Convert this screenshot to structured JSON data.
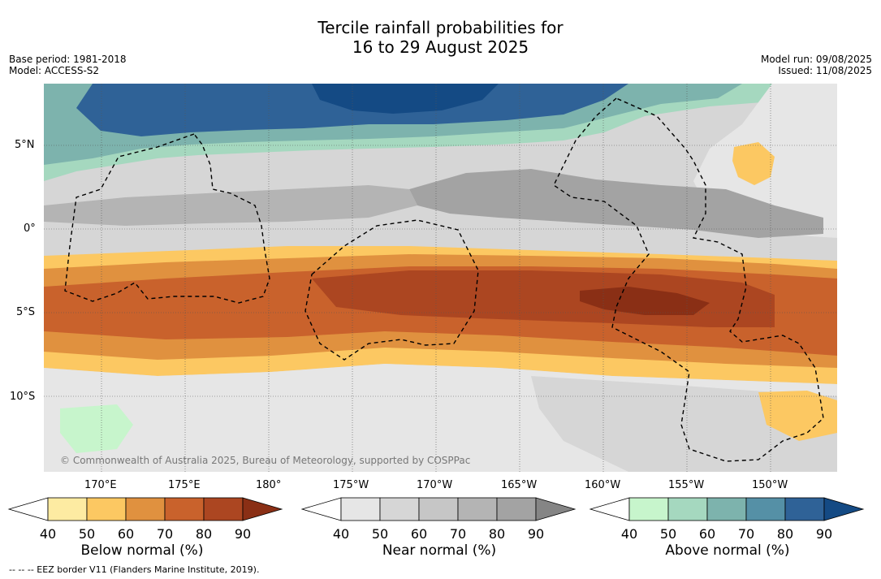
{
  "title_line1": "Tercile rainfall probabilities for",
  "title_line2": "16 to 29 August 2025",
  "meta_left": {
    "base_period": "Base period: 1981-2018",
    "model": "Model: ACCESS-S2"
  },
  "meta_right": {
    "model_run": "Model run: 09/08/2025",
    "issued": "Issued: 11/08/2025"
  },
  "map": {
    "lat_labels": [
      "5°N",
      "0°",
      "5°S",
      "10°S"
    ],
    "lon_labels": [
      "170°E",
      "175°E",
      "180°",
      "175°W",
      "170°W",
      "165°W",
      "160°W",
      "155°W",
      "150°W"
    ],
    "copyright": "© Commonwealth of Australia 2025, Bureau of Meteorology, supported by COSPPac"
  },
  "colorbars": [
    {
      "label": "Below normal (%)",
      "ticks": [
        "40",
        "50",
        "60",
        "70",
        "80",
        "90"
      ],
      "colors": [
        "#fdeba2",
        "#fcc862",
        "#e0913f",
        "#c9622c",
        "#ac4621",
        "#8a2f15"
      ]
    },
    {
      "label": "Near normal (%)",
      "ticks": [
        "40",
        "50",
        "60",
        "70",
        "80",
        "90"
      ],
      "colors": [
        "#e6e6e6",
        "#d6d6d6",
        "#c6c6c6",
        "#b4b4b4",
        "#a3a3a3",
        "#858585"
      ]
    },
    {
      "label": "Above normal (%)",
      "ticks": [
        "40",
        "50",
        "60",
        "70",
        "80",
        "90"
      ],
      "colors": [
        "#c7f5cc",
        "#a5d8bf",
        "#7db3ad",
        "#5590a6",
        "#2f6297",
        "#144a84"
      ]
    }
  ],
  "footnote": "--  --  -- EEZ border V11 (Flanders Marine Institute, 2019)."
}
